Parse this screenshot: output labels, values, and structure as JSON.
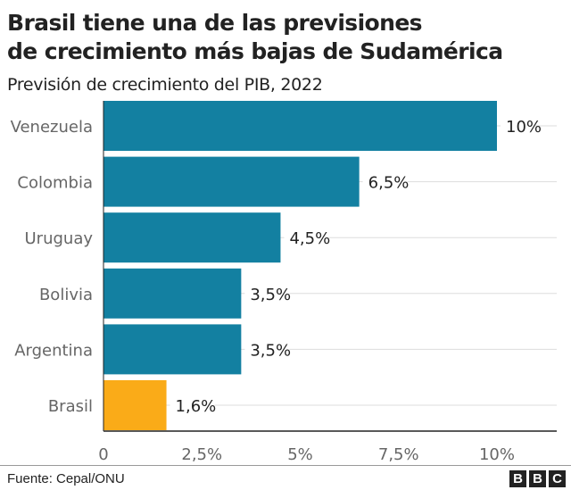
{
  "chart_data": {
    "type": "bar",
    "orientation": "horizontal",
    "title_lines": [
      "Brasil tiene una de las previsiones",
      "de crecimiento más bajas de Sudamérica"
    ],
    "subtitle": "Previsión de crecimiento del PIB, 2022",
    "categories": [
      "Venezuela",
      "Colombia",
      "Uruguay",
      "Bolivia",
      "Argentina",
      "Brasil"
    ],
    "values": [
      10,
      6.5,
      4.5,
      3.5,
      3.5,
      1.6
    ],
    "data_labels": [
      "10%",
      "6,5%",
      "4,5%",
      "3,5%",
      "3,5%",
      "1,6%"
    ],
    "highlight": "Brasil",
    "xlim": [
      0,
      10
    ],
    "xticks": [
      0,
      2.5,
      5,
      7.5,
      10
    ],
    "xtick_labels": [
      "0",
      "2,5%",
      "5%",
      "7,5%",
      "10%"
    ],
    "colors": {
      "default": "#1380A1",
      "highlight": "#FAAB18"
    },
    "grid": false
  },
  "footer": {
    "source": "Fuente: Cepal/ONU",
    "logo": [
      "B",
      "B",
      "C"
    ]
  }
}
